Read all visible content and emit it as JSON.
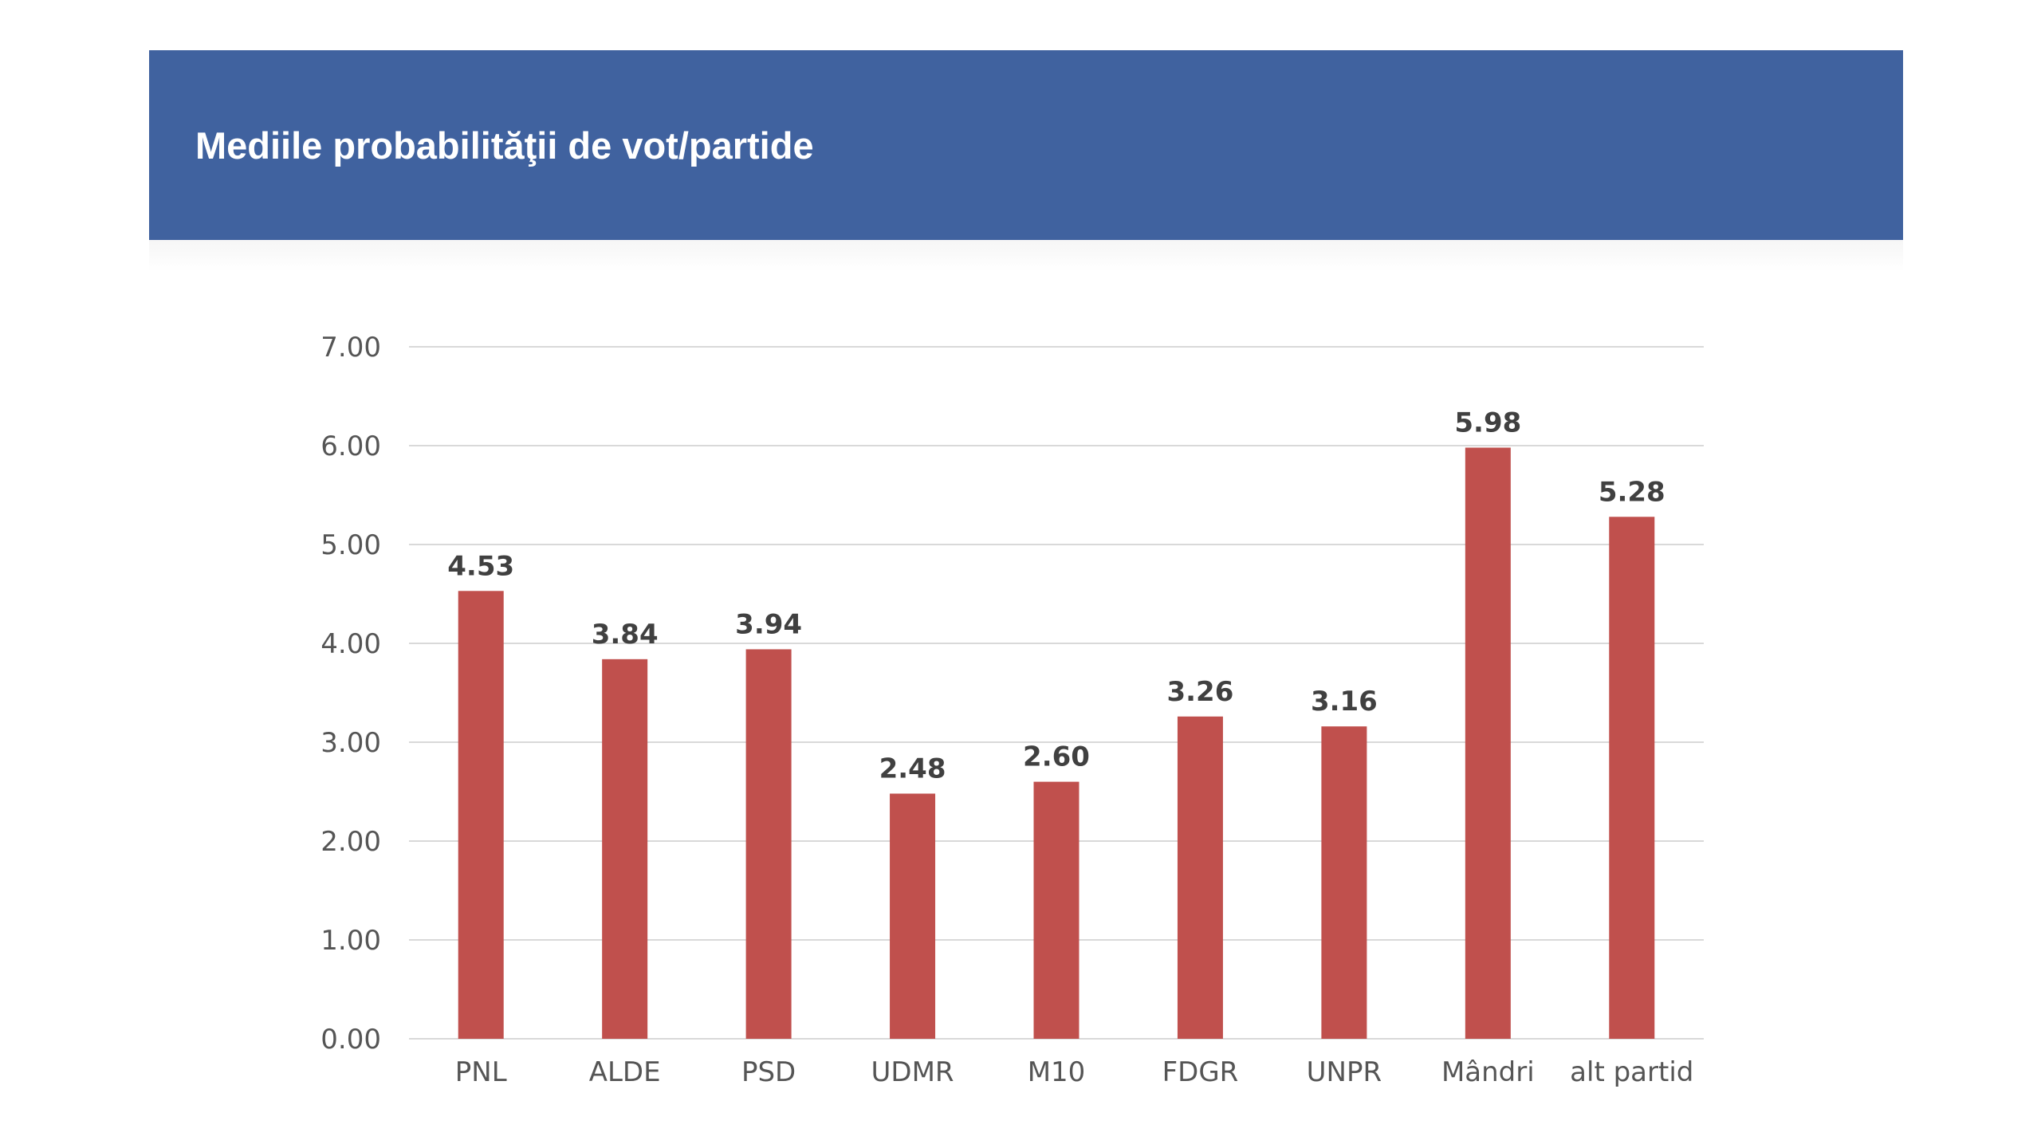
{
  "header": {
    "title": "Mediile probabilităţii de vot/partide"
  },
  "colors": {
    "header_bg": "#40629f",
    "bar": "#c0504d",
    "grid": "#d9d9d9"
  },
  "chart_data": {
    "type": "bar",
    "title": "Mediile probabilităţii de vot/partide",
    "categories": [
      "PNL",
      "ALDE",
      "PSD",
      "UDMR",
      "M10",
      "FDGR",
      "UNPR",
      "Mândri",
      "alt partid"
    ],
    "values": [
      4.53,
      3.84,
      3.94,
      2.48,
      2.6,
      3.26,
      3.16,
      5.98,
      5.28
    ],
    "value_labels": [
      "4.53",
      "3.84",
      "3.94",
      "2.48",
      "2.60",
      "3.26",
      "3.16",
      "5.98",
      "5.28"
    ],
    "yticks": [
      "0.00",
      "1.00",
      "2.00",
      "3.00",
      "4.00",
      "5.00",
      "6.00",
      "7.00"
    ],
    "ylim": [
      0,
      7
    ],
    "xlabel": "",
    "ylabel": "",
    "grid": true,
    "legend": "none"
  }
}
